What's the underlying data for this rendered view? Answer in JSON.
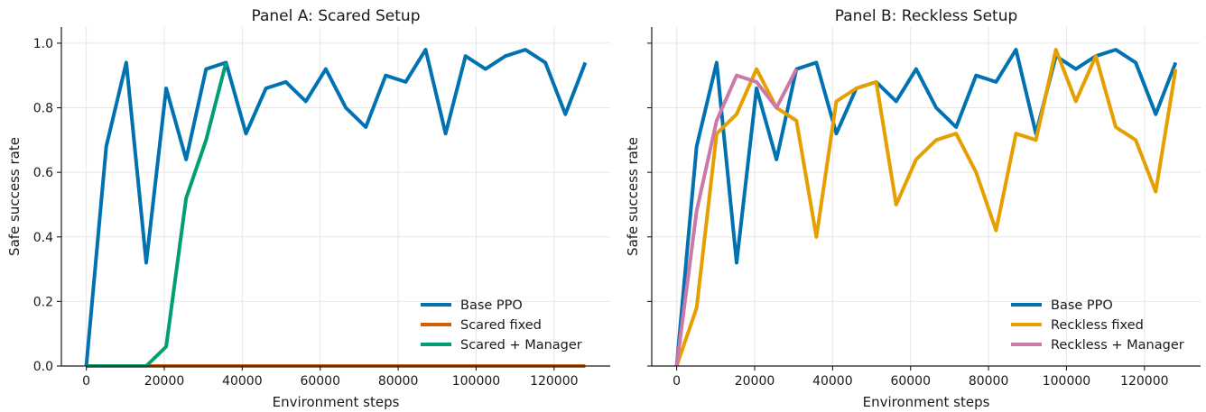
{
  "chart_data": [
    {
      "type": "line",
      "title": "Panel A: Scared Setup",
      "xlabel": "Environment steps",
      "ylabel": "Safe success rate",
      "xlim": [
        -6400,
        134400
      ],
      "ylim": [
        0,
        1.05
      ],
      "xticks": [
        0,
        20000,
        40000,
        60000,
        80000,
        100000,
        120000
      ],
      "yticks": [
        0.0,
        0.2,
        0.4,
        0.6,
        0.8,
        1.0
      ],
      "x_tick_labels": [
        "0",
        "20000",
        "40000",
        "60000",
        "80000",
        "100000",
        "120000"
      ],
      "y_tick_labels": [
        "0.0",
        "0.2",
        "0.4",
        "0.6",
        "0.8",
        "1.0"
      ],
      "grid": true,
      "legend_position": "lower-right",
      "series": [
        {
          "name": "Base PPO",
          "color": "#0072B2",
          "x": [
            0,
            5120,
            10240,
            15360,
            20480,
            25600,
            30720,
            35840,
            40960,
            46080,
            51200,
            56320,
            61440,
            66560,
            71680,
            76800,
            81920,
            87040,
            92160,
            97280,
            102400,
            107520,
            112640,
            117760,
            122880,
            128000
          ],
          "y": [
            0.0,
            0.68,
            0.94,
            0.32,
            0.86,
            0.64,
            0.92,
            0.94,
            0.72,
            0.86,
            0.88,
            0.82,
            0.92,
            0.8,
            0.74,
            0.9,
            0.88,
            0.98,
            0.72,
            0.96,
            0.92,
            0.96,
            0.98,
            0.94,
            0.78,
            0.94
          ]
        },
        {
          "name": "Scared fixed",
          "color": "#D55E00",
          "x": [
            0,
            5120,
            10240,
            15360,
            20480,
            25600,
            30720,
            35840,
            40960,
            46080,
            51200,
            56320,
            61440,
            66560,
            71680,
            76800,
            81920,
            87040,
            92160,
            97280,
            102400,
            107520,
            112640,
            117760,
            122880,
            128000
          ],
          "y": [
            0,
            0,
            0,
            0,
            0,
            0,
            0,
            0,
            0,
            0,
            0,
            0,
            0,
            0,
            0,
            0,
            0,
            0,
            0,
            0,
            0,
            0,
            0,
            0,
            0,
            0
          ]
        },
        {
          "name": "Scared + Manager",
          "color": "#009E73",
          "x": [
            0,
            5120,
            10240,
            15360,
            20480,
            25600,
            30720,
            35840
          ],
          "y": [
            0.0,
            0.0,
            0.0,
            0.0,
            0.06,
            0.52,
            0.7,
            0.94
          ]
        }
      ]
    },
    {
      "type": "line",
      "title": "Panel B: Reckless Setup",
      "xlabel": "Environment steps",
      "ylabel": "Safe success rate",
      "xlim": [
        -6400,
        134400
      ],
      "ylim": [
        0,
        1.05
      ],
      "xticks": [
        0,
        20000,
        40000,
        60000,
        80000,
        100000,
        120000
      ],
      "yticks": [
        0.0,
        0.2,
        0.4,
        0.6,
        0.8,
        1.0
      ],
      "x_tick_labels": [
        "0",
        "20000",
        "40000",
        "60000",
        "80000",
        "100000",
        "120000"
      ],
      "y_tick_labels": [
        "",
        "",
        "",
        "",
        "",
        ""
      ],
      "grid": true,
      "legend_position": "lower-right",
      "series": [
        {
          "name": "Base PPO",
          "color": "#0072B2",
          "x": [
            0,
            5120,
            10240,
            15360,
            20480,
            25600,
            30720,
            35840,
            40960,
            46080,
            51200,
            56320,
            61440,
            66560,
            71680,
            76800,
            81920,
            87040,
            92160,
            97280,
            102400,
            107520,
            112640,
            117760,
            122880,
            128000
          ],
          "y": [
            0.0,
            0.68,
            0.94,
            0.32,
            0.86,
            0.64,
            0.92,
            0.94,
            0.72,
            0.86,
            0.88,
            0.82,
            0.92,
            0.8,
            0.74,
            0.9,
            0.88,
            0.98,
            0.72,
            0.96,
            0.92,
            0.96,
            0.98,
            0.94,
            0.78,
            0.94
          ]
        },
        {
          "name": "Reckless fixed",
          "color": "#E69F00",
          "x": [
            0,
            5120,
            10240,
            15360,
            20480,
            25600,
            30720,
            35840,
            40960,
            46080,
            51200,
            56320,
            61440,
            66560,
            71680,
            76800,
            81920,
            87040,
            92160,
            97280,
            102400,
            107520,
            112640,
            117760,
            122880,
            128000
          ],
          "y": [
            0.0,
            0.18,
            0.72,
            0.78,
            0.92,
            0.8,
            0.76,
            0.4,
            0.82,
            0.86,
            0.88,
            0.5,
            0.64,
            0.7,
            0.72,
            0.6,
            0.42,
            0.72,
            0.7,
            0.98,
            0.82,
            0.96,
            0.74,
            0.7,
            0.54,
            0.92
          ]
        },
        {
          "name": "Reckless + Manager",
          "color": "#CC79A7",
          "x": [
            0,
            5120,
            10240,
            15360,
            20480,
            25600,
            30720
          ],
          "y": [
            0.0,
            0.48,
            0.76,
            0.9,
            0.88,
            0.8,
            0.92
          ]
        }
      ]
    }
  ]
}
